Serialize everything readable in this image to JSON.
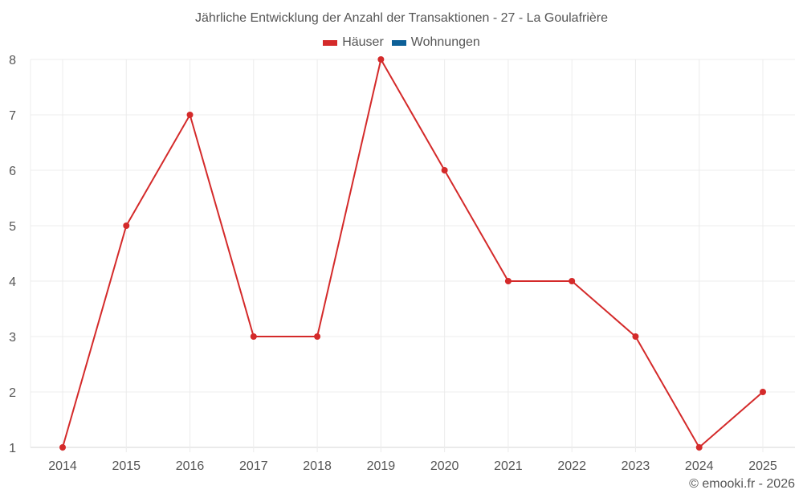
{
  "chart_data": {
    "type": "line",
    "title": "Jährliche Entwicklung der Anzahl der Transaktionen - 27 - La Goulafrière",
    "categories": [
      "2014",
      "2015",
      "2016",
      "2017",
      "2018",
      "2019",
      "2020",
      "2021",
      "2022",
      "2023",
      "2024",
      "2025"
    ],
    "series": [
      {
        "name": "Häuser",
        "color": "#d42a2a",
        "values": [
          1,
          5,
          7,
          3,
          3,
          8,
          6,
          4,
          4,
          3,
          1,
          2
        ]
      },
      {
        "name": "Wohnungen",
        "color": "#0d6098",
        "values": []
      }
    ],
    "xlabel": "",
    "ylabel": "",
    "ylim": [
      1,
      8
    ],
    "yticks": [
      1,
      2,
      3,
      4,
      5,
      6,
      7,
      8
    ],
    "grid": true,
    "legend_position": "top"
  },
  "credit": "© emooki.fr - 2026"
}
